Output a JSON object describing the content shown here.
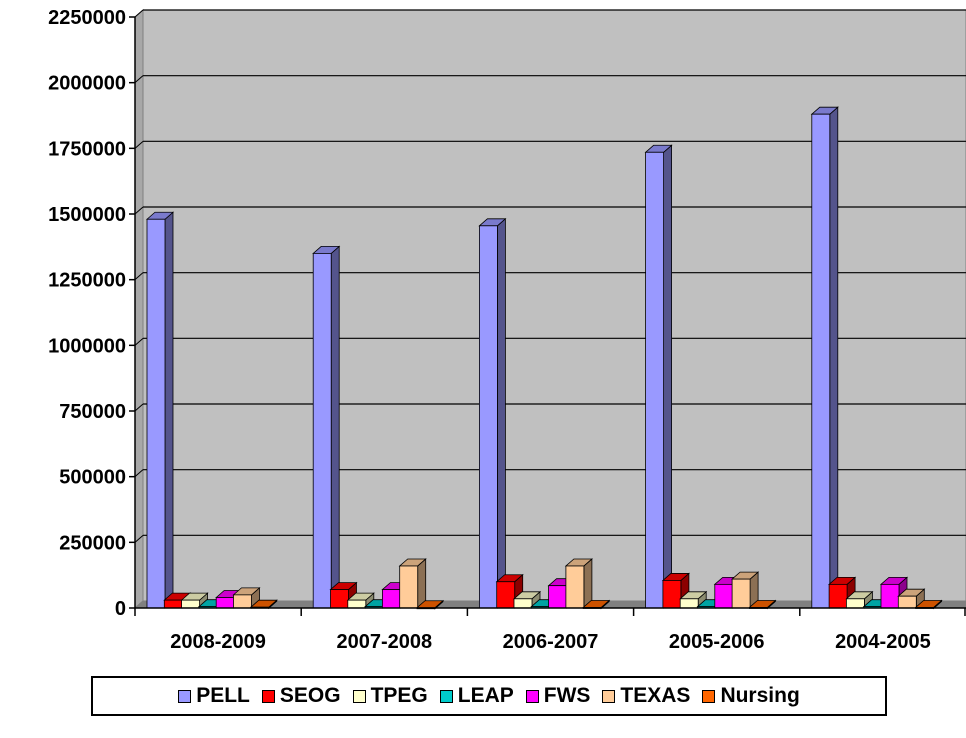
{
  "chart_data": {
    "type": "bar",
    "title": "",
    "xlabel": "",
    "ylabel": "",
    "ylim": [
      0,
      2250000
    ],
    "yticks": [
      "0",
      "250000",
      "500000",
      "750000",
      "1000000",
      "1250000",
      "1500000",
      "1750000",
      "2000000",
      "2250000"
    ],
    "categories": [
      "2008-2009",
      "2007-2008",
      "2006-2007",
      "2005-2006",
      "2004-2005"
    ],
    "grid": true,
    "legend_position": "bottom",
    "series": [
      {
        "name": "PELL",
        "color": "#9999ff",
        "values": [
          1480000,
          1350000,
          1455000,
          1735000,
          1880000
        ]
      },
      {
        "name": "SEOG",
        "color": "#ff0000",
        "values": [
          30000,
          70000,
          100000,
          105000,
          90000
        ]
      },
      {
        "name": "TPEG",
        "color": "#ffffcc",
        "values": [
          30000,
          30000,
          35000,
          35000,
          35000
        ]
      },
      {
        "name": "LEAP",
        "color": "#00cccc",
        "values": [
          5000,
          5000,
          5000,
          5000,
          5000
        ]
      },
      {
        "name": "FWS",
        "color": "#ff00ff",
        "values": [
          40000,
          70000,
          85000,
          90000,
          90000
        ]
      },
      {
        "name": "TEXAS",
        "color": "#ffcc99",
        "values": [
          50000,
          160000,
          160000,
          110000,
          45000
        ]
      },
      {
        "name": "Nursing",
        "color": "#ff6600",
        "values": [
          3000,
          1000,
          2000,
          2000,
          2000
        ]
      }
    ]
  }
}
